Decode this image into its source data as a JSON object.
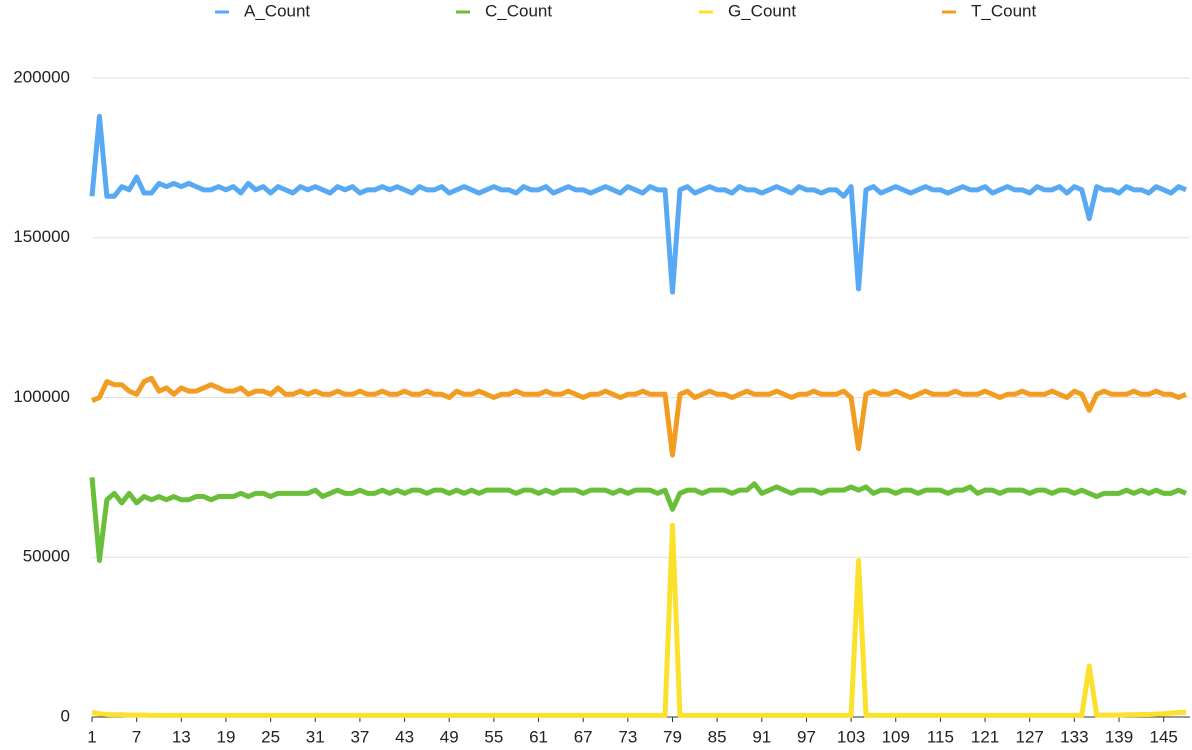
{
  "chart_data": {
    "type": "line",
    "x": [
      1,
      2,
      3,
      4,
      5,
      6,
      7,
      8,
      9,
      10,
      11,
      12,
      13,
      14,
      15,
      16,
      17,
      18,
      19,
      20,
      21,
      22,
      23,
      24,
      25,
      26,
      27,
      28,
      29,
      30,
      31,
      32,
      33,
      34,
      35,
      36,
      37,
      38,
      39,
      40,
      41,
      42,
      43,
      44,
      45,
      46,
      47,
      48,
      49,
      50,
      51,
      52,
      53,
      54,
      55,
      56,
      57,
      58,
      59,
      60,
      61,
      62,
      63,
      64,
      65,
      66,
      67,
      68,
      69,
      70,
      71,
      72,
      73,
      74,
      75,
      76,
      77,
      78,
      79,
      80,
      81,
      82,
      83,
      84,
      85,
      86,
      87,
      88,
      89,
      90,
      91,
      92,
      93,
      94,
      95,
      96,
      97,
      98,
      99,
      100,
      101,
      102,
      103,
      104,
      105,
      106,
      107,
      108,
      109,
      110,
      111,
      112,
      113,
      114,
      115,
      116,
      117,
      118,
      119,
      120,
      121,
      122,
      123,
      124,
      125,
      126,
      127,
      128,
      129,
      130,
      131,
      132,
      133,
      134,
      135,
      136,
      137,
      138,
      139,
      140,
      141,
      142,
      143,
      144,
      145,
      146,
      147,
      148
    ],
    "xlim": [
      1,
      148
    ],
    "xticks": [
      1,
      7,
      13,
      19,
      25,
      31,
      37,
      43,
      49,
      55,
      61,
      67,
      73,
      79,
      85,
      91,
      97,
      103,
      109,
      115,
      121,
      127,
      133,
      139,
      145
    ],
    "ylim": [
      0,
      200000
    ],
    "yticks": [
      0,
      50000,
      100000,
      150000,
      200000
    ],
    "grid": true,
    "legend": "top",
    "series": [
      {
        "name": "A_Count",
        "color": "#58a9f4",
        "values": [
          163000,
          188000,
          163000,
          163000,
          166000,
          165000,
          169000,
          164000,
          164000,
          167000,
          166000,
          167000,
          166000,
          167000,
          166000,
          165000,
          165000,
          166000,
          165000,
          166000,
          164000,
          167000,
          165000,
          166000,
          164000,
          166000,
          165000,
          164000,
          166000,
          165000,
          166000,
          165000,
          164000,
          166000,
          165000,
          166000,
          164000,
          165000,
          165000,
          166000,
          165000,
          166000,
          165000,
          164000,
          166000,
          165000,
          165000,
          166000,
          164000,
          165000,
          166000,
          165000,
          164000,
          165000,
          166000,
          165000,
          165000,
          164000,
          166000,
          165000,
          165000,
          166000,
          164000,
          165000,
          166000,
          165000,
          165000,
          164000,
          165000,
          166000,
          165000,
          164000,
          166000,
          165000,
          164000,
          166000,
          165000,
          165000,
          133000,
          165000,
          166000,
          164000,
          165000,
          166000,
          165000,
          165000,
          164000,
          166000,
          165000,
          165000,
          164000,
          165000,
          166000,
          165000,
          164000,
          166000,
          165000,
          165000,
          164000,
          165000,
          165000,
          163000,
          166000,
          134000,
          165000,
          166000,
          164000,
          165000,
          166000,
          165000,
          164000,
          165000,
          166000,
          165000,
          165000,
          164000,
          165000,
          166000,
          165000,
          165000,
          166000,
          164000,
          165000,
          166000,
          165000,
          165000,
          164000,
          166000,
          165000,
          165000,
          166000,
          164000,
          166000,
          165000,
          156000,
          166000,
          165000,
          165000,
          164000,
          166000,
          165000,
          165000,
          164000,
          166000,
          165000,
          164000,
          166000,
          165000
        ]
      },
      {
        "name": "C_Count",
        "color": "#6abf3a",
        "values": [
          75000,
          49000,
          68000,
          70000,
          67000,
          70000,
          67000,
          69000,
          68000,
          69000,
          68000,
          69000,
          68000,
          68000,
          69000,
          69000,
          68000,
          69000,
          69000,
          69000,
          70000,
          69000,
          70000,
          70000,
          69000,
          70000,
          70000,
          70000,
          70000,
          70000,
          71000,
          69000,
          70000,
          71000,
          70000,
          70000,
          71000,
          70000,
          70000,
          71000,
          70000,
          71000,
          70000,
          71000,
          71000,
          70000,
          71000,
          71000,
          70000,
          71000,
          70000,
          71000,
          70000,
          71000,
          71000,
          71000,
          71000,
          70000,
          71000,
          71000,
          70000,
          71000,
          70000,
          71000,
          71000,
          71000,
          70000,
          71000,
          71000,
          71000,
          70000,
          71000,
          70000,
          71000,
          71000,
          71000,
          70000,
          71000,
          65000,
          70000,
          71000,
          71000,
          70000,
          71000,
          71000,
          71000,
          70000,
          71000,
          71000,
          73000,
          70000,
          71000,
          72000,
          71000,
          70000,
          71000,
          71000,
          71000,
          70000,
          71000,
          71000,
          71000,
          72000,
          71000,
          72000,
          70000,
          71000,
          71000,
          70000,
          71000,
          71000,
          70000,
          71000,
          71000,
          71000,
          70000,
          71000,
          71000,
          72000,
          70000,
          71000,
          71000,
          70000,
          71000,
          71000,
          71000,
          70000,
          71000,
          71000,
          70000,
          71000,
          71000,
          70000,
          71000,
          70000,
          69000,
          70000,
          70000,
          70000,
          71000,
          70000,
          71000,
          70000,
          71000,
          70000,
          70000,
          71000,
          70000
        ]
      },
      {
        "name": "G_Count",
        "color": "#fbe12b",
        "values": [
          1500,
          1000,
          800,
          700,
          700,
          600,
          600,
          600,
          500,
          500,
          500,
          500,
          500,
          500,
          500,
          500,
          500,
          500,
          500,
          500,
          500,
          500,
          500,
          500,
          500,
          500,
          500,
          500,
          500,
          500,
          500,
          500,
          500,
          500,
          500,
          500,
          500,
          500,
          500,
          500,
          500,
          500,
          500,
          500,
          500,
          500,
          500,
          500,
          500,
          500,
          500,
          500,
          500,
          500,
          500,
          500,
          500,
          500,
          500,
          500,
          500,
          500,
          500,
          500,
          500,
          500,
          500,
          500,
          500,
          500,
          500,
          500,
          500,
          500,
          500,
          500,
          500,
          500,
          60000,
          500,
          500,
          500,
          500,
          500,
          500,
          500,
          500,
          500,
          500,
          500,
          500,
          500,
          500,
          500,
          500,
          500,
          500,
          500,
          500,
          500,
          500,
          500,
          500,
          49000,
          500,
          500,
          500,
          500,
          500,
          500,
          500,
          500,
          500,
          500,
          500,
          500,
          500,
          500,
          500,
          500,
          500,
          500,
          500,
          500,
          500,
          500,
          500,
          500,
          500,
          500,
          500,
          500,
          500,
          500,
          16000,
          600,
          600,
          600,
          600,
          700,
          700,
          800,
          800,
          900,
          1000,
          1200,
          1400,
          1500
        ]
      },
      {
        "name": "T_Count",
        "color": "#f39c22",
        "values": [
          99000,
          100000,
          105000,
          104000,
          104000,
          102000,
          101000,
          105000,
          106000,
          102000,
          103000,
          101000,
          103000,
          102000,
          102000,
          103000,
          104000,
          103000,
          102000,
          102000,
          103000,
          101000,
          102000,
          102000,
          101000,
          103000,
          101000,
          101000,
          102000,
          101000,
          102000,
          101000,
          101000,
          102000,
          101000,
          101000,
          102000,
          101000,
          101000,
          102000,
          101000,
          101000,
          102000,
          101000,
          101000,
          102000,
          101000,
          101000,
          100000,
          102000,
          101000,
          101000,
          102000,
          101000,
          100000,
          101000,
          101000,
          102000,
          101000,
          101000,
          101000,
          102000,
          101000,
          101000,
          102000,
          101000,
          100000,
          101000,
          101000,
          102000,
          101000,
          100000,
          101000,
          101000,
          102000,
          101000,
          101000,
          101000,
          82000,
          101000,
          102000,
          100000,
          101000,
          102000,
          101000,
          101000,
          100000,
          101000,
          102000,
          101000,
          101000,
          101000,
          102000,
          101000,
          100000,
          101000,
          101000,
          102000,
          101000,
          101000,
          101000,
          102000,
          100000,
          84000,
          101000,
          102000,
          101000,
          101000,
          102000,
          101000,
          100000,
          101000,
          102000,
          101000,
          101000,
          101000,
          102000,
          101000,
          101000,
          101000,
          102000,
          101000,
          100000,
          101000,
          101000,
          102000,
          101000,
          101000,
          101000,
          102000,
          101000,
          100000,
          102000,
          101000,
          96000,
          101000,
          102000,
          101000,
          101000,
          101000,
          102000,
          101000,
          101000,
          102000,
          101000,
          101000,
          100000,
          101000
        ]
      }
    ]
  }
}
